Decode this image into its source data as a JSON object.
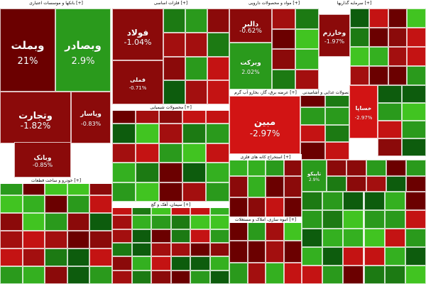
{
  "colors": {
    "dark_red": "#6b0000",
    "red": "#8b0a0a",
    "bright_red": "#d21414",
    "dark_green": "#0d5c0d",
    "green": "#2a9a1c",
    "bright_green": "#41c421"
  },
  "sectors": [
    {
      "label": "بانکها و موسسات اعتباری [+]"
    },
    {
      "label": "فلزات اساسی [+]"
    },
    {
      "label": "مواد و محصولات دارویی [+]"
    },
    {
      "label": "سرمایه گذاریها [+]"
    },
    {
      "label": "محصولات شیمیایی [+]"
    },
    {
      "label": "عرضه برق، گاز، بخارو آب گرم [+]"
    },
    {
      "label": "محصولات غذایی و آشامیدنی [+]"
    },
    {
      "label": "خودرو و ساخت قطعات [+]"
    },
    {
      "label": "سیمان، آهک و گچ [+]"
    },
    {
      "label": "استخراج کانه های فلزی [+]"
    },
    {
      "label": "انبوه سازی، املاک و مستغلات [+]"
    }
  ],
  "chart_data": {
    "type": "heatmap",
    "title": "",
    "tiles": [
      {
        "symbol": "وبملت",
        "change": "21%",
        "color": "dark_red"
      },
      {
        "symbol": "وبصادر",
        "change": "2.9%",
        "color": "green"
      },
      {
        "symbol": "وتجارت",
        "change": "-1.82%",
        "color": "red"
      },
      {
        "symbol": "وپاسار",
        "change": "-0.83%",
        "color": "red"
      },
      {
        "symbol": "وبانک",
        "change": "-0.85%",
        "color": "red"
      },
      {
        "symbol": "فولاد",
        "change": "-1.04%",
        "color": "red"
      },
      {
        "symbol": "فملی",
        "change": "-0.71%",
        "color": "red"
      },
      {
        "symbol": "دالبر",
        "change": "-0.62%",
        "color": "red"
      },
      {
        "symbol": "وبرکت",
        "change": "2.02%",
        "color": "green"
      },
      {
        "symbol": "مبین",
        "change": "-2.97%",
        "color": "bright_red"
      },
      {
        "symbol": "وخارزم",
        "change": "-1.97%",
        "color": "red"
      },
      {
        "symbol": "خساپا",
        "change": "-2.97%",
        "color": "bright_red"
      },
      {
        "symbol": "تاپیکو",
        "change": "2.9%",
        "color": "green"
      }
    ]
  }
}
